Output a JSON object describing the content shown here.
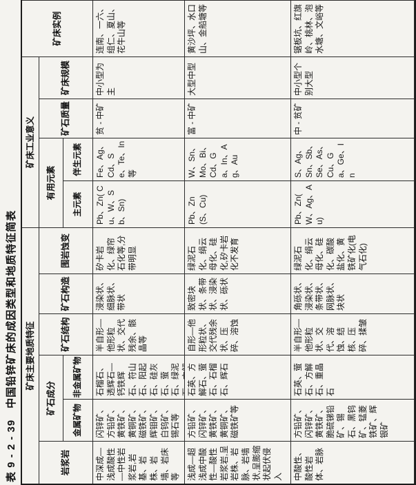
{
  "title": "表 9 - 2 - 39　中国铅锌矿床的成因类型和地质特征简表",
  "groups": {
    "geology": "矿床主要地质特征",
    "industry": "矿床工业意义"
  },
  "columns": {
    "magmatic": "岩浆岩",
    "composition": "矿石成分",
    "metallic": "金属矿物",
    "nonmetallic": "非金属矿物",
    "texture": "矿石结构",
    "structure": "矿石构造",
    "alteration": "围岩蚀变",
    "elements": "有用元素",
    "main_elements": "主元素",
    "associated_elements": "伴生元素",
    "quality": "矿石质量",
    "scale": "矿床规模",
    "examples": "矿床实例"
  },
  "rows": [
    {
      "magmatic": "中深成—浅成酸性—中性岩浆岩,岩基、岩株、岩墙、岩床等",
      "metallic": "闪锌矿、方铅矿、黄铁矿、黄铜矿、磁铁矿、辉钼矿、白钨矿、锡石等",
      "nonmetallic": "石榴石、透辉石—钙铁辉石、符山石、阳起石、硅灰石、萤石、绿泥石、方解石等",
      "texture": "半自形—他形粒状、交代残余、骸晶等",
      "structure": "浸染状、细脉状、带状",
      "alteration": "矽卡岩化、绿帘石化等,分带明显",
      "main_elements": "Pb、Zn( Cu、W、Sb、Sn)",
      "associated_elements": "Fe、Ag、Cd、Se、Te、In 等",
      "quality": "贫 - 中矿",
      "scale": "中小型为主",
      "examples": "连南、一六、组仁、夏山、花牛山等"
    },
    {
      "magmatic": "浅成—超浅成中酸性—酸性岩浆岩,呈岩株、岩脉、岩墙状,呈膨缩状起伏侵入",
      "metallic": "方铅矿、闪锌矿、黄铁矿、黄铜矿、磁铁矿等",
      "nonmetallic": "石英、方解石、萤石、石榴石、辉石",
      "texture": "自形—他形粒状、交代残余状、压碎、溶蚀",
      "structure": "致密块状、条带状、浸染状、砾状",
      "alteration": "绿泥石化、绢云母化、硅化,矽卡岩化不发育",
      "main_elements": "Pb、Zn(S、Cu)",
      "associated_elements": "W、Sn、Mo、Bi、Cd、Ga、In、Ag、Au",
      "quality": "富 - 中矿",
      "scale": "大型中型",
      "examples": "黄沙坪、水口山、金船塘等"
    },
    {
      "magmatic": "中酸性、酸性岩体、岩脉",
      "metallic": "方铅矿、闪锌矿、黄铁矿、脆硫锑铅矿、锡石、黑钨矿、锰菱铁矿、辉银矿",
      "nonmetallic": "石英、萤石、方解石、重晶石",
      "texture": "半自形—他形粒状、交代、溶蚀、结核、压碎、揉皱",
      "structure": "角砾状、浸染状、条带状、网脉状、块状",
      "alteration": "绿泥石化、绢云母化、硅化、碳酸盐化、黄铁矿化(电气石化)",
      "main_elements": "Pb、Zn( W、Ag、Au)",
      "associated_elements": "S、Ag、Sn、Sb、Se、As、Cu、Ga、Ge、In",
      "quality": "中 - 贫矿",
      "scale": "中小型个别大型",
      "examples": "锯板坑、红旗岭、桃林、泡水塘、文峪等"
    }
  ]
}
